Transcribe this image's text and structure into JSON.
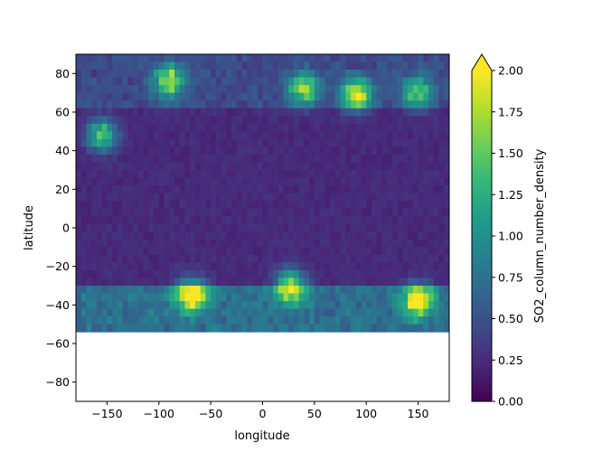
{
  "chart_data": {
    "type": "heatmap",
    "xlabel": "longitude",
    "ylabel": "latitude",
    "colorbar_label": "SO2_column_number_density",
    "xlim": [
      -180,
      180
    ],
    "ylim": [
      -90,
      90
    ],
    "x_ticks": [
      "−150",
      "−100",
      "−50",
      "0",
      "50",
      "100",
      "150"
    ],
    "x_tick_values": [
      -150,
      -100,
      -50,
      0,
      50,
      100,
      150
    ],
    "y_ticks": [
      "80",
      "60",
      "40",
      "20",
      "0",
      "−20",
      "−40",
      "−60",
      "−80"
    ],
    "y_tick_values": [
      80,
      60,
      40,
      20,
      0,
      -20,
      -40,
      -60,
      -80
    ],
    "colorbar": {
      "min": 0.0,
      "max": 2.0,
      "extend": "max",
      "colormap": "viridis",
      "ticks": [
        "0.00",
        "0.25",
        "0.50",
        "0.75",
        "1.00",
        "1.25",
        "1.50",
        "1.75",
        "2.00"
      ],
      "tick_values": [
        0,
        0.25,
        0.5,
        0.75,
        1.0,
        1.25,
        1.5,
        1.75,
        2.0
      ]
    },
    "data_coverage": {
      "lat_min": -52,
      "lat_max": 90
    },
    "hotspots": [
      {
        "lon": -68,
        "lat": -35,
        "value": 2.0
      },
      {
        "lon": 27,
        "lat": -30,
        "value": 1.8
      },
      {
        "lon": 150,
        "lat": -38,
        "value": 1.8
      },
      {
        "lon": -155,
        "lat": 48,
        "value": 1.4
      },
      {
        "lon": -90,
        "lat": 76,
        "value": 1.6
      },
      {
        "lon": 40,
        "lat": 72,
        "value": 1.5
      },
      {
        "lon": 90,
        "lat": 69,
        "value": 1.8
      },
      {
        "lon": 150,
        "lat": 70,
        "value": 1.3
      }
    ],
    "colors": {
      "viridis": [
        "#440154",
        "#482878",
        "#3e4989",
        "#31688e",
        "#26828e",
        "#1f9e89",
        "#35b779",
        "#6ece58",
        "#b5de2b",
        "#fde725"
      ]
    }
  }
}
